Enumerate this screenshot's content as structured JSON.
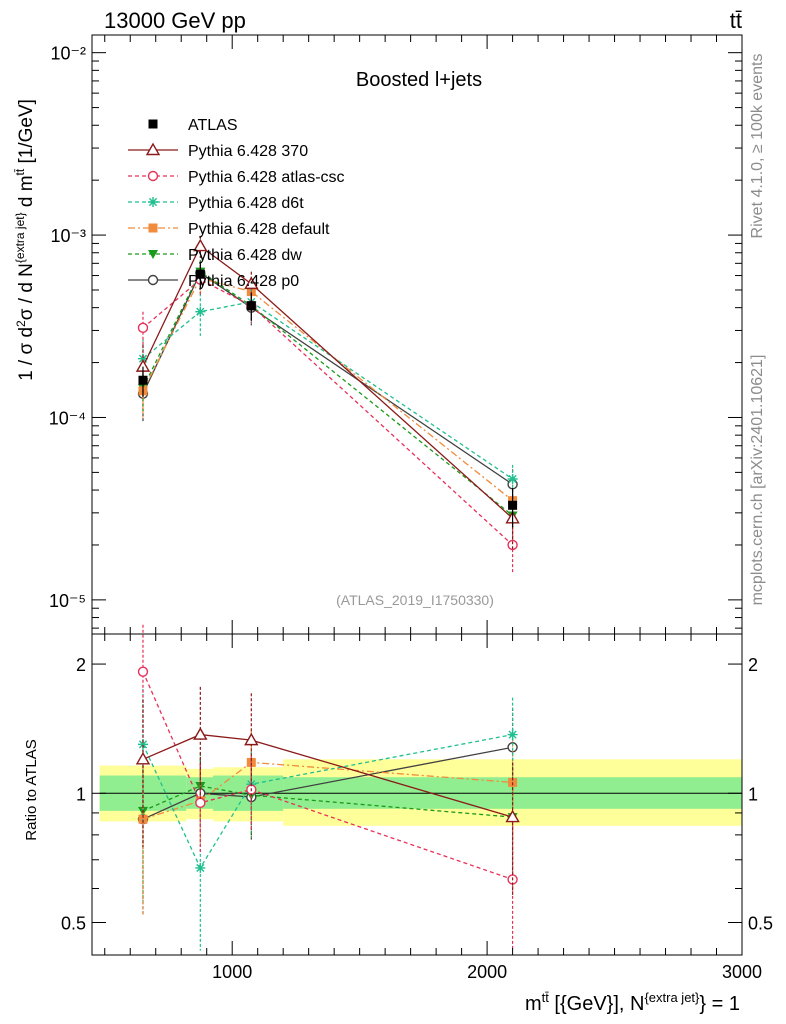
{
  "header": {
    "left": "13000 GeV pp",
    "right": "tt̄"
  },
  "side_labels": {
    "top": "Rivet 4.1.0, ≥ 100k events",
    "bottom": "mcplots.cern.ch [arXiv:2401.10621]"
  },
  "analysis_id": "(ATLAS_2019_I1750330)",
  "chart_data": [
    {
      "type": "line",
      "panel": "main",
      "title": "Boosted l+jets",
      "yscale": "log",
      "ylim": [
        6.5e-06,
        0.0125
      ],
      "xlim": [
        450,
        3000
      ],
      "ylabel": "1 / σ d²σ / d N^{extra jet} d m^{tt̄} [1/GeV]",
      "ytick_labels": [
        "10⁻⁵",
        "10⁻⁴",
        "10⁻³",
        "10⁻²"
      ],
      "ytick_values": [
        1e-05,
        0.0001,
        0.001,
        0.01
      ],
      "x": [
        650,
        875,
        1075,
        2100
      ],
      "legend_position": "top-left",
      "series": [
        {
          "name": "ATLAS",
          "color": "#000000",
          "marker": "square",
          "line": "none",
          "values": [
            0.00016,
            0.00061,
            0.00041,
            3.3e-05
          ],
          "err_up": [
            3e-05,
            0.0001,
            7e-05,
            8e-06
          ],
          "err_down": [
            3e-05,
            0.0001,
            7e-05,
            8e-06
          ]
        },
        {
          "name": "Pythia 6.428 370",
          "color": "#8b1a1a",
          "marker": "triangle-open",
          "line": "solid",
          "values": [
            0.00019,
            0.00087,
            0.00054,
            2.8e-05
          ],
          "err_up": [
            6e-05,
            0.00012,
            9e-05,
            9e-06
          ],
          "err_down": [
            6e-05,
            0.00012,
            9e-05,
            9e-06
          ]
        },
        {
          "name": "Pythia 6.428 atlas-csc",
          "color": "#e8305a",
          "marker": "circle-open",
          "line": "dashed",
          "values": [
            0.00031,
            0.00057,
            0.00041,
            2e-05
          ],
          "err_up": [
            7e-05,
            0.0001,
            8e-05,
            6e-06
          ],
          "err_down": [
            7e-05,
            0.0001,
            8e-05,
            6e-06
          ]
        },
        {
          "name": "Pythia 6.428 d6t",
          "color": "#1fbf8f",
          "marker": "star",
          "line": "dashed",
          "values": [
            0.00021,
            0.00038,
            0.00043,
            4.6e-05
          ],
          "err_up": [
            6e-05,
            0.0001,
            8e-05,
            9e-06
          ],
          "err_down": [
            6e-05,
            0.0001,
            8e-05,
            9e-06
          ]
        },
        {
          "name": "Pythia 6.428 default",
          "color": "#f08c3c",
          "marker": "square",
          "line": "dashdot",
          "values": [
            0.00014,
            0.00058,
            0.00049,
            3.5e-05
          ],
          "err_up": [
            4e-05,
            0.0001,
            8e-05,
            8e-06
          ],
          "err_down": [
            4e-05,
            0.0001,
            8e-05,
            8e-06
          ]
        },
        {
          "name": "Pythia 6.428 dw",
          "color": "#1a9a1a",
          "marker": "triangle-down",
          "line": "dashed",
          "values": [
            0.000145,
            0.00063,
            0.00041,
            2.9e-05
          ],
          "err_up": [
            4e-05,
            0.0001,
            8e-05,
            8e-06
          ],
          "err_down": [
            4e-05,
            0.0001,
            8e-05,
            8e-06
          ]
        },
        {
          "name": "Pythia 6.428 p0",
          "color": "#404040",
          "marker": "circle-open",
          "line": "solid",
          "values": [
            0.000135,
            0.00062,
            0.0004,
            4.3e-05
          ],
          "err_up": [
            4e-05,
            0.0001,
            8e-05,
            9e-06
          ],
          "err_down": [
            4e-05,
            0.0001,
            8e-05,
            9e-06
          ]
        }
      ]
    },
    {
      "type": "line",
      "panel": "ratio",
      "yscale": "log",
      "ylim": [
        0.42,
        2.35
      ],
      "xlim": [
        450,
        3000
      ],
      "ylabel": "Ratio to ATLAS",
      "xlabel": "m^{tt̄} [{GeV}], N^{extra jet} = 1",
      "ytick_labels": [
        "0.5",
        "1",
        "2"
      ],
      "ytick_values": [
        0.5,
        1,
        2
      ],
      "xtick_labels": [
        "1000",
        "2000",
        "3000"
      ],
      "xtick_values": [
        1000,
        2000,
        3000
      ],
      "bands": [
        {
          "x": [
            480,
            820
          ],
          "stat": [
            0.91,
            1.1
          ],
          "total": [
            0.86,
            1.16
          ]
        },
        {
          "x": [
            820,
            925
          ],
          "stat": [
            0.92,
            1.09
          ],
          "total": [
            0.87,
            1.14
          ]
        },
        {
          "x": [
            925,
            1200
          ],
          "stat": [
            0.91,
            1.1
          ],
          "total": [
            0.86,
            1.15
          ]
        },
        {
          "x": [
            1200,
            3000
          ],
          "stat": [
            0.92,
            1.09
          ],
          "total": [
            0.84,
            1.2
          ]
        }
      ],
      "band_colors": {
        "stat": "#90ee90",
        "total": "#ffff99"
      },
      "x": [
        650,
        875,
        1075,
        2100
      ],
      "series": [
        {
          "name": "Pythia 6.428 370",
          "values": [
            1.2,
            1.37,
            1.33,
            0.88
          ],
          "err": [
            0.45,
            0.4,
            0.38,
            0.3
          ]
        },
        {
          "name": "Pythia 6.428 atlas-csc",
          "values": [
            1.92,
            0.95,
            1.02,
            0.63
          ],
          "err": [
            0.55,
            0.22,
            0.2,
            0.28
          ]
        },
        {
          "name": "Pythia 6.428 d6t",
          "values": [
            1.3,
            0.67,
            1.05,
            1.37
          ],
          "err": [
            0.45,
            0.25,
            0.2,
            0.3
          ]
        },
        {
          "name": "Pythia 6.428 default",
          "values": [
            0.87,
            0.96,
            1.18,
            1.06
          ],
          "err": [
            0.35,
            0.2,
            0.22,
            0.28
          ]
        },
        {
          "name": "Pythia 6.428 dw",
          "values": [
            0.91,
            1.04,
            0.99,
            0.88
          ],
          "err": [
            0.35,
            0.2,
            0.2,
            0.28
          ]
        },
        {
          "name": "Pythia 6.428 p0",
          "values": [
            0.87,
            1.0,
            0.98,
            1.28
          ],
          "err": [
            0.35,
            0.2,
            0.2,
            0.3
          ]
        }
      ]
    }
  ]
}
